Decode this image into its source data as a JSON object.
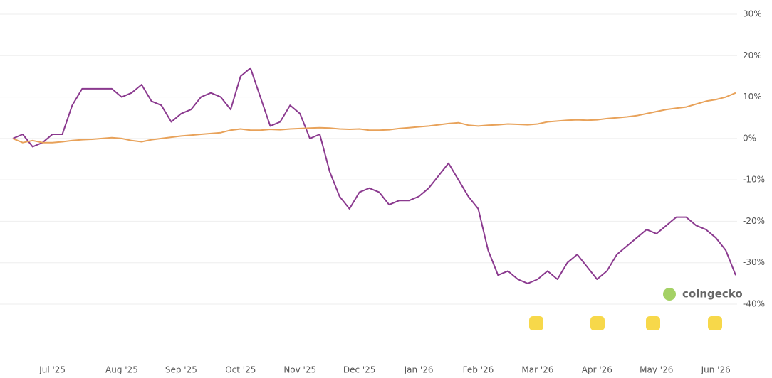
{
  "chart_data": {
    "type": "line",
    "watermark": "coingecko",
    "categories": [
      null,
      null,
      null,
      null,
      "Jul '25",
      null,
      null,
      null,
      null,
      null,
      null,
      "Aug '25",
      null,
      null,
      null,
      null,
      null,
      "Sep '25",
      null,
      null,
      null,
      null,
      null,
      "Oct '25",
      null,
      null,
      null,
      null,
      null,
      "Nov '25",
      null,
      null,
      null,
      null,
      null,
      "Dec '25",
      null,
      null,
      null,
      null,
      null,
      "Jan '26",
      null,
      null,
      null,
      null,
      null,
      "Feb '26",
      null,
      null,
      null,
      null,
      null,
      "Mar '26",
      null,
      null,
      null,
      null,
      null,
      "Apr '26",
      null,
      null,
      null,
      null,
      null,
      "May '26",
      null,
      null,
      null,
      null,
      null,
      "Jun '26",
      null,
      null
    ],
    "series": [
      {
        "color": "#8b3a8f",
        "values": [
          0,
          1,
          -2,
          -1,
          1,
          1,
          8,
          12,
          12,
          12,
          12,
          10,
          11,
          13,
          9,
          8,
          4,
          6,
          7,
          10,
          11,
          10,
          7,
          15,
          17,
          10,
          3,
          4,
          8,
          6,
          0,
          1,
          -8,
          -14,
          -17,
          -13,
          -12,
          -13,
          -16,
          -15,
          -15,
          -14,
          -12,
          -9,
          -6,
          -10,
          -14,
          -17,
          -27,
          -33,
          -32,
          -34,
          -35,
          -34,
          -32,
          -34,
          -30,
          -28,
          -31,
          -34,
          -32,
          -28,
          -26,
          -24,
          -22,
          -23,
          -21,
          -19,
          -19,
          -21,
          -22,
          -24,
          -27,
          -33
        ]
      },
      {
        "color": "#e8a25a",
        "values": [
          0,
          -1,
          -0.5,
          -1,
          -1,
          -0.8,
          -0.5,
          -0.3,
          -0.2,
          0,
          0.2,
          0,
          -0.5,
          -0.8,
          -0.3,
          0,
          0.3,
          0.6,
          0.8,
          1,
          1.2,
          1.4,
          2,
          2.3,
          2,
          2,
          2.2,
          2.1,
          2.3,
          2.4,
          2.5,
          2.6,
          2.5,
          2.3,
          2.2,
          2.3,
          2,
          2,
          2.1,
          2.4,
          2.6,
          2.8,
          3,
          3.3,
          3.6,
          3.8,
          3.2,
          3,
          3.2,
          3.3,
          3.5,
          3.4,
          3.3,
          3.5,
          4,
          4.2,
          4.4,
          4.5,
          4.4,
          4.5,
          4.8,
          5,
          5.2,
          5.5,
          6,
          6.5,
          7,
          7.3,
          7.6,
          8.3,
          9,
          9.4,
          10,
          11
        ]
      }
    ],
    "ylim": [
      -40,
      30
    ],
    "yticks": [
      {
        "value": -40,
        "label": "-40%"
      },
      {
        "value": -30,
        "label": "-30%"
      },
      {
        "value": -20,
        "label": "-20%"
      },
      {
        "value": -10,
        "label": "-10%"
      },
      {
        "value": 0,
        "label": "0%"
      },
      {
        "value": 10,
        "label": "10%"
      },
      {
        "value": 20,
        "label": "20%"
      },
      {
        "value": 30,
        "label": "30%"
      }
    ],
    "grid": true
  }
}
